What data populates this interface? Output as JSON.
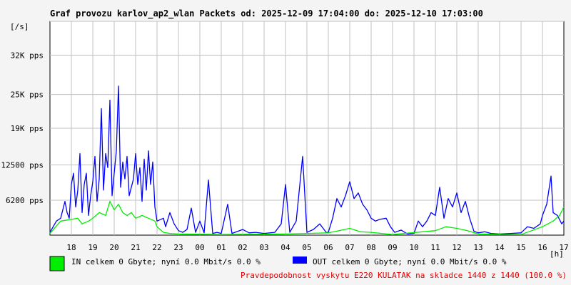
{
  "chart_data": {
    "type": "line",
    "title": "Graf provozu karlov_ap2_wlan Packets od: 2025-12-09 17:04:00 do: 2025-12-10 17:03:00",
    "ylabel": "[/s]",
    "xlabel": "[h]",
    "ylim": [
      0,
      38000
    ],
    "yticks": [
      {
        "value": 6200,
        "label": "6200 pps"
      },
      {
        "value": 12500,
        "label": "12500 pps"
      },
      {
        "value": 19000,
        "label": "19K pps"
      },
      {
        "value": 25000,
        "label": "25K pps"
      },
      {
        "value": 32000,
        "label": "32K pps"
      }
    ],
    "xlim": [
      0,
      24
    ],
    "xticks": [
      {
        "value": 1,
        "label": "18"
      },
      {
        "value": 2,
        "label": "19"
      },
      {
        "value": 3,
        "label": "20"
      },
      {
        "value": 4,
        "label": "21"
      },
      {
        "value": 5,
        "label": "22"
      },
      {
        "value": 6,
        "label": "23"
      },
      {
        "value": 7,
        "label": "00"
      },
      {
        "value": 8,
        "label": "01"
      },
      {
        "value": 9,
        "label": "02"
      },
      {
        "value": 10,
        "label": "03"
      },
      {
        "value": 11,
        "label": "04"
      },
      {
        "value": 12,
        "label": "05"
      },
      {
        "value": 13,
        "label": "06"
      },
      {
        "value": 14,
        "label": "07"
      },
      {
        "value": 15,
        "label": "08"
      },
      {
        "value": 16,
        "label": "09"
      },
      {
        "value": 17,
        "label": "10"
      },
      {
        "value": 18,
        "label": "11"
      },
      {
        "value": 19,
        "label": "12"
      },
      {
        "value": 20,
        "label": "13"
      },
      {
        "value": 21,
        "label": "14"
      },
      {
        "value": 22,
        "label": "15"
      },
      {
        "value": 23,
        "label": "16"
      },
      {
        "value": 24,
        "label": "17"
      }
    ],
    "grid": true,
    "series": [
      {
        "name": "OUT",
        "color": "#0000ff",
        "points": [
          [
            0.0,
            500
          ],
          [
            0.3,
            2500
          ],
          [
            0.5,
            3000
          ],
          [
            0.7,
            6000
          ],
          [
            0.8,
            4000
          ],
          [
            0.9,
            3000
          ],
          [
            1.0,
            9000
          ],
          [
            1.1,
            11000
          ],
          [
            1.2,
            5000
          ],
          [
            1.3,
            8000
          ],
          [
            1.4,
            14500
          ],
          [
            1.5,
            4000
          ],
          [
            1.6,
            9000
          ],
          [
            1.7,
            11000
          ],
          [
            1.8,
            3500
          ],
          [
            1.9,
            7000
          ],
          [
            2.0,
            9500
          ],
          [
            2.1,
            14000
          ],
          [
            2.2,
            6000
          ],
          [
            2.3,
            10000
          ],
          [
            2.4,
            22500
          ],
          [
            2.5,
            8000
          ],
          [
            2.6,
            14500
          ],
          [
            2.7,
            12000
          ],
          [
            2.8,
            24000
          ],
          [
            2.9,
            7000
          ],
          [
            3.0,
            11000
          ],
          [
            3.1,
            15000
          ],
          [
            3.2,
            26500
          ],
          [
            3.3,
            8500
          ],
          [
            3.4,
            13000
          ],
          [
            3.5,
            10000
          ],
          [
            3.6,
            14000
          ],
          [
            3.7,
            7000
          ],
          [
            3.9,
            10000
          ],
          [
            4.0,
            14500
          ],
          [
            4.1,
            9000
          ],
          [
            4.2,
            12000
          ],
          [
            4.3,
            6000
          ],
          [
            4.4,
            13500
          ],
          [
            4.5,
            8000
          ],
          [
            4.6,
            15000
          ],
          [
            4.7,
            9000
          ],
          [
            4.8,
            13000
          ],
          [
            4.9,
            5000
          ],
          [
            5.0,
            2500
          ],
          [
            5.3,
            3000
          ],
          [
            5.4,
            1500
          ],
          [
            5.6,
            4000
          ],
          [
            5.8,
            2000
          ],
          [
            6.0,
            800
          ],
          [
            6.2,
            500
          ],
          [
            6.4,
            1000
          ],
          [
            6.6,
            4800
          ],
          [
            6.8,
            500
          ],
          [
            7.0,
            2500
          ],
          [
            7.2,
            400
          ],
          [
            7.4,
            9800
          ],
          [
            7.6,
            300
          ],
          [
            7.8,
            500
          ],
          [
            8.0,
            300
          ],
          [
            8.3,
            5500
          ],
          [
            8.5,
            300
          ],
          [
            9.0,
            1000
          ],
          [
            9.3,
            400
          ],
          [
            9.6,
            500
          ],
          [
            10.0,
            300
          ],
          [
            10.5,
            500
          ],
          [
            10.8,
            2000
          ],
          [
            11.0,
            9000
          ],
          [
            11.2,
            500
          ],
          [
            11.5,
            2500
          ],
          [
            11.8,
            14000
          ],
          [
            12.0,
            500
          ],
          [
            12.3,
            1000
          ],
          [
            12.6,
            2000
          ],
          [
            12.9,
            500
          ],
          [
            13.0,
            500
          ],
          [
            13.2,
            3000
          ],
          [
            13.4,
            6500
          ],
          [
            13.6,
            5000
          ],
          [
            13.8,
            7000
          ],
          [
            14.0,
            9500
          ],
          [
            14.2,
            6500
          ],
          [
            14.4,
            7500
          ],
          [
            14.6,
            5500
          ],
          [
            14.8,
            4500
          ],
          [
            15.0,
            3000
          ],
          [
            15.2,
            2500
          ],
          [
            15.4,
            2800
          ],
          [
            15.7,
            3000
          ],
          [
            15.9,
            1500
          ],
          [
            16.1,
            500
          ],
          [
            16.4,
            900
          ],
          [
            16.7,
            200
          ],
          [
            17.0,
            300
          ],
          [
            17.2,
            2500
          ],
          [
            17.4,
            1500
          ],
          [
            17.6,
            2500
          ],
          [
            17.8,
            4000
          ],
          [
            18.0,
            3500
          ],
          [
            18.2,
            8500
          ],
          [
            18.4,
            3000
          ],
          [
            18.6,
            6500
          ],
          [
            18.8,
            5000
          ],
          [
            19.0,
            7500
          ],
          [
            19.2,
            4000
          ],
          [
            19.4,
            6000
          ],
          [
            19.6,
            3000
          ],
          [
            19.8,
            700
          ],
          [
            20.0,
            400
          ],
          [
            20.3,
            600
          ],
          [
            20.6,
            300
          ],
          [
            21.0,
            200
          ],
          [
            21.5,
            300
          ],
          [
            22.0,
            400
          ],
          [
            22.3,
            1500
          ],
          [
            22.6,
            1200
          ],
          [
            22.9,
            2000
          ],
          [
            23.0,
            3500
          ],
          [
            23.2,
            5500
          ],
          [
            23.4,
            10500
          ],
          [
            23.5,
            4000
          ],
          [
            23.7,
            3500
          ],
          [
            23.9,
            2000
          ],
          [
            24.0,
            2500
          ]
        ]
      },
      {
        "name": "IN",
        "color": "#00ee00",
        "points": [
          [
            0.0,
            300
          ],
          [
            0.5,
            2500
          ],
          [
            1.0,
            2800
          ],
          [
            1.3,
            3000
          ],
          [
            1.5,
            2000
          ],
          [
            1.8,
            2500
          ],
          [
            2.0,
            3000
          ],
          [
            2.3,
            4000
          ],
          [
            2.6,
            3500
          ],
          [
            2.8,
            6000
          ],
          [
            3.0,
            4500
          ],
          [
            3.2,
            5500
          ],
          [
            3.4,
            4000
          ],
          [
            3.6,
            3500
          ],
          [
            3.8,
            4000
          ],
          [
            4.0,
            3000
          ],
          [
            4.3,
            3500
          ],
          [
            4.6,
            3000
          ],
          [
            4.9,
            2500
          ],
          [
            5.0,
            1500
          ],
          [
            5.3,
            500
          ],
          [
            5.6,
            300
          ],
          [
            6.0,
            200
          ],
          [
            8.0,
            100
          ],
          [
            11.0,
            200
          ],
          [
            12.0,
            300
          ],
          [
            13.0,
            400
          ],
          [
            13.5,
            800
          ],
          [
            14.0,
            1200
          ],
          [
            14.5,
            600
          ],
          [
            15.0,
            500
          ],
          [
            16.0,
            100
          ],
          [
            18.0,
            800
          ],
          [
            18.5,
            1500
          ],
          [
            19.0,
            1200
          ],
          [
            19.5,
            800
          ],
          [
            20.0,
            200
          ],
          [
            22.0,
            100
          ],
          [
            23.0,
            1500
          ],
          [
            23.5,
            2500
          ],
          [
            23.8,
            3500
          ],
          [
            24.0,
            5000
          ]
        ]
      }
    ]
  },
  "legend": {
    "in_color": "#00ee00",
    "out_color": "#0000ff",
    "in_text": "IN celkem 0 Gbyte; nyní   0.0 Mbit/s 0.0 %",
    "out_text": "OUT celkem 0 Gbyte; nyní   0.0 Mbit/s 0.0 %"
  },
  "footer": {
    "warning": "Pravdepodobnost vyskytu E220 KULATAK na skladce 1440 z 1440 (100.0 %)",
    "warning_color": "#e00000"
  }
}
